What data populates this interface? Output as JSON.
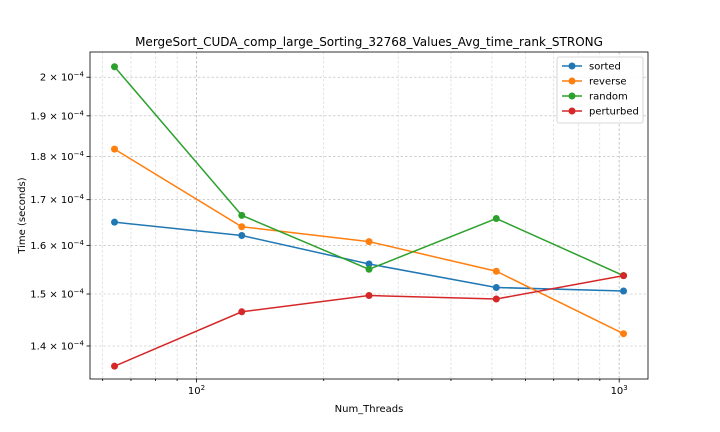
{
  "chart_data": {
    "type": "line",
    "title": "MergeSort_CUDA_comp_large_Sorting_32768_Values_Avg_time_rank_STRONG",
    "xlabel": "Num_Threads",
    "ylabel": "Time (seconds)",
    "xscale": "log",
    "yscale": "log",
    "xlim": [
      56,
      1170
    ],
    "ylim": [
      0.000134,
      0.0002068
    ],
    "x": [
      64,
      128,
      256,
      512,
      1024
    ],
    "x_ticks": [
      {
        "value": 100,
        "base": "10",
        "exp": "2"
      },
      {
        "value": 1000,
        "base": "10",
        "exp": "3"
      }
    ],
    "y_ticks": [
      {
        "value": 0.00014,
        "mant": "1.4",
        "exp": "−4"
      },
      {
        "value": 0.00015,
        "mant": "1.5",
        "exp": "−4"
      },
      {
        "value": 0.00016,
        "mant": "1.6",
        "exp": "−4"
      },
      {
        "value": 0.00017,
        "mant": "1.7",
        "exp": "−4"
      },
      {
        "value": 0.00018,
        "mant": "1.8",
        "exp": "−4"
      },
      {
        "value": 0.00019,
        "mant": "1.9",
        "exp": "−4"
      },
      {
        "value": 0.0002,
        "mant": "2",
        "exp": "−4"
      }
    ],
    "grid": true,
    "legend_position": "top-right",
    "series": [
      {
        "name": "sorted",
        "color": "#1f77b4",
        "values": [
          0.000165,
          0.0001621,
          0.0001561,
          0.0001513,
          0.0001506
        ]
      },
      {
        "name": "reverse",
        "color": "#ff7f0e",
        "values": [
          0.0001818,
          0.000164,
          0.0001608,
          0.0001546,
          0.0001423
        ]
      },
      {
        "name": "random",
        "color": "#2ca02c",
        "values": [
          0.0002028,
          0.0001665,
          0.000155,
          0.0001658,
          0.0001537
        ]
      },
      {
        "name": "perturbed",
        "color": "#d62728",
        "values": [
          0.0001363,
          0.0001465,
          0.0001497,
          0.000149,
          0.0001537
        ]
      }
    ]
  }
}
